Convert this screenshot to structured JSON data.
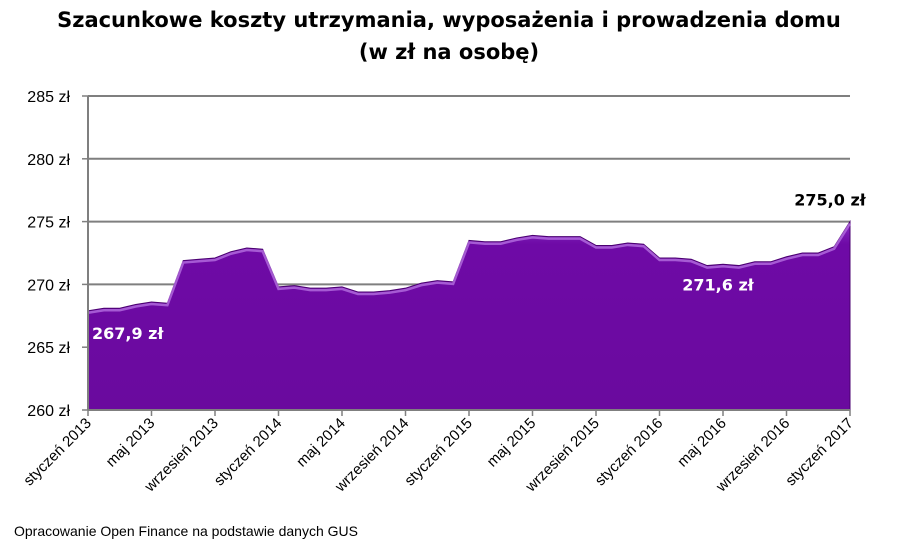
{
  "chart_data": {
    "type": "area",
    "title": "Szacunkowe koszty utrzymania, wyposażenia i prowadzenia domu",
    "subtitle": "(w zł na osobę)",
    "xlabel": "",
    "ylabel": "",
    "ylim": [
      260,
      285
    ],
    "grid": true,
    "y_ticks": [
      "260 zł",
      "265 zł",
      "270 zł",
      "275 zł",
      "280 zł",
      "285 zł"
    ],
    "x_ticks": [
      "styczeń 2013",
      "maj 2013",
      "wrzesień 2013",
      "styczeń 2014",
      "maj 2014",
      "wrzesień 2014",
      "styczeń 2015",
      "maj 2015",
      "wrzesień 2015",
      "styczeń 2016",
      "maj 2016",
      "wrzesień 2016",
      "styczeń 2017"
    ],
    "x": [
      "sty 2013",
      "lut 2013",
      "mar 2013",
      "kwi 2013",
      "maj 2013",
      "cze 2013",
      "lip 2013",
      "sie 2013",
      "wrz 2013",
      "paź 2013",
      "lis 2013",
      "gru 2013",
      "sty 2014",
      "lut 2014",
      "mar 2014",
      "kwi 2014",
      "maj 2014",
      "cze 2014",
      "lip 2014",
      "sie 2014",
      "wrz 2014",
      "paź 2014",
      "lis 2014",
      "gru 2014",
      "sty 2015",
      "lut 2015",
      "mar 2015",
      "kwi 2015",
      "maj 2015",
      "cze 2015",
      "lip 2015",
      "sie 2015",
      "wrz 2015",
      "paź 2015",
      "lis 2015",
      "gru 2015",
      "sty 2016",
      "lut 2016",
      "mar 2016",
      "kwi 2016",
      "maj 2016",
      "cze 2016",
      "lip 2016",
      "sie 2016",
      "wrz 2016",
      "paź 2016",
      "lis 2016",
      "gru 2016",
      "sty 2017"
    ],
    "series": [
      {
        "values": [
          267.9,
          268.1,
          268.1,
          268.4,
          268.6,
          268.5,
          271.9,
          272.0,
          272.1,
          272.6,
          272.9,
          272.8,
          269.8,
          269.9,
          269.7,
          269.7,
          269.8,
          269.4,
          269.4,
          269.5,
          269.7,
          270.1,
          270.3,
          270.2,
          273.5,
          273.4,
          273.4,
          273.7,
          273.9,
          273.8,
          273.8,
          273.8,
          273.1,
          273.1,
          273.3,
          273.2,
          272.1,
          272.1,
          272.0,
          271.5,
          271.6,
          271.5,
          271.8,
          271.8,
          272.2,
          272.5,
          272.5,
          273.0,
          275.0
        ]
      }
    ],
    "data_labels": [
      {
        "index": 0,
        "text": "267,9 zł"
      },
      {
        "index": 40,
        "text": "271,6 zł"
      },
      {
        "index": 48,
        "text": "275,0 zł"
      }
    ],
    "colors": {
      "fill": "#6b0aa0",
      "fill_light": "#9a3fd0",
      "edge": "#4a0070",
      "grid": "#7f7f7f"
    }
  },
  "source": "Opracowanie Open Finance na podstawie danych GUS"
}
